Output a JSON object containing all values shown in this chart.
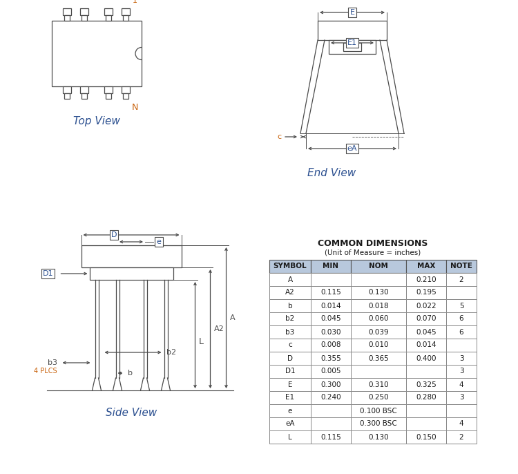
{
  "title_color": "#2c5090",
  "line_color": "#4a4a4a",
  "orange_color": "#c8610a",
  "bg_color": "#ffffff",
  "table_title": "COMMON DIMENSIONS",
  "table_subtitle": "(Unit of Measure = inches)",
  "table_columns": [
    "SYMBOL",
    "MIN",
    "NOM",
    "MAX",
    "NOTE"
  ],
  "table_rows": [
    [
      "A",
      "",
      "",
      "0.210",
      "2"
    ],
    [
      "A2",
      "0.115",
      "0.130",
      "0.195",
      ""
    ],
    [
      "b",
      "0.014",
      "0.018",
      "0.022",
      "5"
    ],
    [
      "b2",
      "0.045",
      "0.060",
      "0.070",
      "6"
    ],
    [
      "b3",
      "0.030",
      "0.039",
      "0.045",
      "6"
    ],
    [
      "c",
      "0.008",
      "0.010",
      "0.014",
      ""
    ],
    [
      "D",
      "0.355",
      "0.365",
      "0.400",
      "3"
    ],
    [
      "D1",
      "0.005",
      "",
      "",
      "3"
    ],
    [
      "E",
      "0.300",
      "0.310",
      "0.325",
      "4"
    ],
    [
      "E1",
      "0.240",
      "0.250",
      "0.280",
      "3"
    ],
    [
      "e",
      "",
      "0.100 BSC",
      "",
      ""
    ],
    [
      "eA",
      "",
      "0.300 BSC",
      "",
      "4"
    ],
    [
      "L",
      "0.115",
      "0.130",
      "0.150",
      "2"
    ]
  ]
}
